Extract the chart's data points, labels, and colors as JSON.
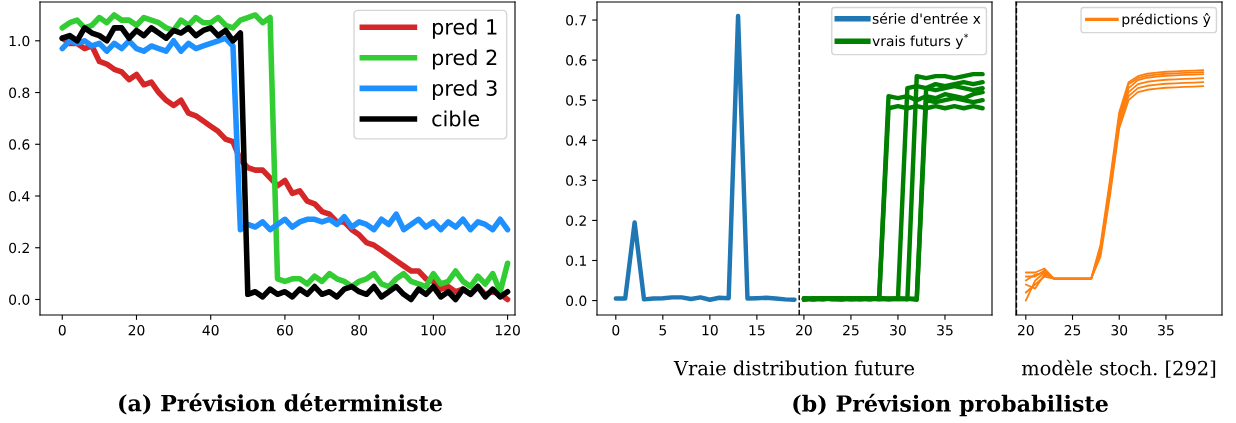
{
  "chart_data": [
    {
      "type": "line",
      "xlim": [
        -6,
        122
      ],
      "ylim": [
        -0.06,
        1.15
      ],
      "xticks": [
        0,
        20,
        40,
        60,
        80,
        100,
        120
      ],
      "yticks": [
        {
          "value": 0,
          "label": "0.0"
        },
        {
          "value": 0.2,
          "label": "0.2"
        },
        {
          "value": 0.4,
          "label": "0.4"
        },
        {
          "value": 0.6,
          "label": "0.6"
        },
        {
          "value": 0.8,
          "label": "0.8"
        },
        {
          "value": 1.0,
          "label": "1.0"
        }
      ],
      "grid": false,
      "legend": "top right",
      "marker": "none",
      "line_style": "solid",
      "x": [
        0,
        2,
        4,
        6,
        8,
        10,
        12,
        14,
        16,
        18,
        20,
        22,
        24,
        26,
        28,
        30,
        32,
        34,
        36,
        38,
        40,
        42,
        44,
        46,
        48,
        50,
        52,
        54,
        56,
        58,
        60,
        62,
        64,
        66,
        68,
        70,
        72,
        74,
        76,
        78,
        80,
        82,
        84,
        86,
        88,
        90,
        92,
        94,
        96,
        98,
        100,
        102,
        104,
        106,
        108,
        110,
        112,
        114,
        116,
        118,
        120
      ],
      "series": [
        {
          "name": "pred 1",
          "color": "#d62728",
          "values": [
            1.01,
            0.99,
            0.99,
            0.97,
            0.98,
            0.92,
            0.91,
            0.89,
            0.88,
            0.85,
            0.87,
            0.83,
            0.84,
            0.8,
            0.77,
            0.75,
            0.77,
            0.72,
            0.71,
            0.69,
            0.67,
            0.65,
            0.62,
            0.61,
            0.54,
            0.51,
            0.5,
            0.5,
            0.47,
            0.44,
            0.46,
            0.41,
            0.42,
            0.38,
            0.37,
            0.34,
            0.33,
            0.3,
            0.3,
            0.27,
            0.25,
            0.22,
            0.21,
            0.19,
            0.17,
            0.15,
            0.13,
            0.11,
            0.11,
            0.08,
            0.07,
            0.04,
            0.05,
            0.03,
            0.04,
            0.02,
            0.05,
            0.02,
            0.03,
            0.02,
            0.0
          ]
        },
        {
          "name": "pred 2",
          "color": "#32cd32",
          "values": [
            1.05,
            1.07,
            1.08,
            1.05,
            1.06,
            1.09,
            1.07,
            1.1,
            1.08,
            1.08,
            1.06,
            1.09,
            1.08,
            1.07,
            1.05,
            1.04,
            1.08,
            1.06,
            1.09,
            1.07,
            1.07,
            1.09,
            1.06,
            1.05,
            1.08,
            1.09,
            1.1,
            1.07,
            1.09,
            0.08,
            0.07,
            0.08,
            0.08,
            0.06,
            0.09,
            0.07,
            0.1,
            0.08,
            0.07,
            0.05,
            0.07,
            0.08,
            0.1,
            0.06,
            0.05,
            0.08,
            0.1,
            0.07,
            0.06,
            0.05,
            0.1,
            0.06,
            0.07,
            0.11,
            0.07,
            0.05,
            0.09,
            0.06,
            0.1,
            0.03,
            0.14
          ]
        },
        {
          "name": "pred 3",
          "color": "#1e90ff",
          "values": [
            0.97,
            1.0,
            0.99,
            1.0,
            0.98,
            0.99,
            0.96,
            0.99,
            0.97,
            1.0,
            0.97,
            0.96,
            0.98,
            0.97,
            0.96,
            1.0,
            0.96,
            0.99,
            0.97,
            0.98,
            0.99,
            1.0,
            1.01,
            0.98,
            0.27,
            0.29,
            0.28,
            0.3,
            0.27,
            0.29,
            0.31,
            0.28,
            0.3,
            0.31,
            0.31,
            0.3,
            0.31,
            0.29,
            0.32,
            0.28,
            0.3,
            0.29,
            0.27,
            0.31,
            0.29,
            0.33,
            0.27,
            0.29,
            0.31,
            0.28,
            0.3,
            0.27,
            0.3,
            0.28,
            0.31,
            0.27,
            0.3,
            0.29,
            0.27,
            0.31,
            0.27
          ]
        },
        {
          "name": "cible",
          "color": "#000000",
          "values": [
            1.01,
            1.02,
            1.0,
            1.05,
            1.03,
            1.02,
            1.0,
            1.05,
            1.05,
            1.01,
            1.04,
            1.02,
            1.05,
            1.03,
            1.01,
            1.04,
            1.03,
            1.05,
            1.02,
            1.04,
            1.05,
            1.02,
            1.04,
            1.0,
            1.03,
            0.02,
            0.03,
            0.01,
            0.04,
            0.02,
            0.03,
            0.01,
            0.04,
            0.02,
            0.05,
            0.02,
            0.03,
            0.01,
            0.04,
            0.05,
            0.03,
            0.02,
            0.05,
            0.01,
            0.03,
            0.05,
            0.02,
            0.0,
            0.04,
            0.02,
            0.05,
            0.01,
            0.03,
            0.0,
            0.04,
            0.02,
            0.05,
            0.01,
            0.04,
            0.01,
            0.03
          ]
        }
      ],
      "annotations": [
        "(a) Prévision déterministe"
      ]
    },
    {
      "type": "line",
      "xlim": [
        -2,
        40
      ],
      "ylim": [
        -0.036,
        0.745
      ],
      "xticks": [
        0,
        5,
        10,
        15,
        20,
        25,
        30,
        35
      ],
      "yticks": [
        {
          "value": 0,
          "label": "0.0"
        },
        {
          "value": 0.1,
          "label": "0.1"
        },
        {
          "value": 0.2,
          "label": "0.2"
        },
        {
          "value": 0.3,
          "label": "0.3"
        },
        {
          "value": 0.4,
          "label": "0.4"
        },
        {
          "value": 0.5,
          "label": "0.5"
        },
        {
          "value": 0.6,
          "label": "0.6"
        },
        {
          "value": 0.7,
          "label": "0.7"
        }
      ],
      "xlabel": "Vraie distribution future",
      "grid": false,
      "legend": "top right",
      "marker": "none",
      "line_style": "solid",
      "ref_lines": [
        {
          "axis": "x",
          "value": 19.5,
          "color": "#000000",
          "line_style": "dashed"
        }
      ],
      "series": [
        {
          "name": "série d'entrée x",
          "color": "#1f77b4",
          "x": [
            0,
            1,
            2,
            3,
            4,
            5,
            6,
            7,
            8,
            9,
            10,
            11,
            12,
            13,
            14,
            15,
            16,
            17,
            18,
            19
          ],
          "values": [
            0.005,
            0.005,
            0.195,
            0.003,
            0.005,
            0.006,
            0.008,
            0.008,
            0.004,
            0.008,
            0.002,
            0.007,
            0.006,
            0.71,
            0.005,
            0.006,
            0.007,
            0.005,
            0.003,
            0.002
          ]
        },
        {
          "name": "vrais futurs y$^{*}$",
          "color": "#008000",
          "x": [
            20,
            21,
            22,
            23,
            24,
            25,
            26,
            27,
            28,
            29,
            30,
            31,
            32,
            33,
            34,
            35,
            36,
            37,
            38,
            39
          ],
          "values": [
            0.005,
            0.004,
            0.006,
            0.005,
            0.004,
            0.006,
            0.005,
            0.004,
            0.005,
            0.51,
            0.505,
            0.51,
            0.5,
            0.51,
            0.505,
            0.515,
            0.51,
            0.505,
            0.515,
            0.52
          ]
        },
        {
          "color": "#008000",
          "x": [
            20,
            21,
            22,
            23,
            24,
            25,
            26,
            27,
            28,
            29,
            30,
            31,
            32,
            33,
            34,
            35,
            36,
            37,
            38,
            39
          ],
          "values": [
            0.002,
            0.006,
            0.003,
            0.005,
            0.006,
            0.003,
            0.004,
            0.006,
            0.004,
            0.48,
            0.485,
            0.48,
            0.485,
            0.48,
            0.485,
            0.48,
            0.485,
            0.48,
            0.485,
            0.48
          ]
        },
        {
          "color": "#008000",
          "x": [
            20,
            21,
            22,
            23,
            24,
            25,
            26,
            27,
            28,
            29,
            30,
            31,
            32,
            33,
            34,
            35,
            36,
            37,
            38,
            39
          ],
          "values": [
            0.006,
            0.003,
            0.005,
            0.004,
            0.003,
            0.005,
            0.006,
            0.003,
            0.005,
            0.004,
            0.005,
            0.53,
            0.535,
            0.53,
            0.54,
            0.535,
            0.54,
            0.545,
            0.54,
            0.545
          ]
        },
        {
          "color": "#008000",
          "x": [
            20,
            21,
            22,
            23,
            24,
            25,
            26,
            27,
            28,
            29,
            30,
            31,
            32,
            33,
            34,
            35,
            36,
            37,
            38,
            39
          ],
          "values": [
            0.004,
            0.005,
            0.004,
            0.006,
            0.005,
            0.004,
            0.005,
            0.005,
            0.006,
            0.005,
            0.004,
            0.003,
            0.56,
            0.555,
            0.56,
            0.56,
            0.555,
            0.56,
            0.565,
            0.565
          ]
        },
        {
          "color": "#008000",
          "x": [
            20,
            21,
            22,
            23,
            24,
            25,
            26,
            27,
            28,
            29,
            30,
            31,
            32,
            33,
            34,
            35,
            36,
            37,
            38,
            39
          ],
          "values": [
            0.003,
            0.004,
            0.006,
            0.003,
            0.004,
            0.006,
            0.003,
            0.004,
            0.006,
            0.003,
            0.004,
            0.005,
            0.002,
            0.5,
            0.495,
            0.5,
            0.505,
            0.5,
            0.495,
            0.5
          ]
        },
        {
          "color": "#008000",
          "x": [
            20,
            21,
            22,
            23,
            24,
            25,
            26,
            27,
            28,
            29,
            30,
            31,
            32,
            33,
            34,
            35,
            36,
            37,
            38,
            39
          ],
          "values": [
            0.005,
            0.003,
            0.004,
            0.005,
            0.003,
            0.004,
            0.004,
            0.005,
            0.003,
            0.004,
            0.006,
            0.004,
            0.005,
            0.53,
            0.525,
            0.53,
            0.535,
            0.53,
            0.525,
            0.53
          ]
        }
      ],
      "annotations": [
        "(b) Prévision probabiliste"
      ]
    },
    {
      "type": "line",
      "xlim": [
        18.95,
        41
      ],
      "ylim": [
        -0.036,
        0.745
      ],
      "xticks": [
        20,
        25,
        30,
        35
      ],
      "tick_labels": "x",
      "xlabel": "modèle stoch. [292]",
      "grid": false,
      "legend": "top right",
      "marker": "none",
      "line_style": "solid",
      "ref_lines": [
        {
          "axis": "x",
          "value": 19,
          "color": "#000000",
          "line_style": "dashed"
        }
      ],
      "series": [
        {
          "name": "prédictions ŷ",
          "color": "#ff7f0e",
          "x": [
            20,
            21,
            22,
            23,
            24,
            25,
            26,
            27,
            28,
            29,
            30,
            31,
            32,
            33,
            34,
            35,
            36,
            37,
            38,
            39
          ],
          "values": [
            0.07,
            0.07,
            0.08,
            0.055,
            0.055,
            0.055,
            0.055,
            0.055,
            0.14,
            0.3,
            0.47,
            0.545,
            0.56,
            0.566,
            0.569,
            0.571,
            0.572,
            0.573,
            0.574,
            0.575
          ]
        },
        {
          "color": "#ff7f0e",
          "x": [
            20,
            21,
            22,
            23,
            24,
            25,
            26,
            27,
            28,
            29,
            30,
            31,
            32,
            33,
            34,
            35,
            36,
            37,
            38,
            39
          ],
          "values": [
            0.0,
            0.05,
            0.07,
            0.055,
            0.055,
            0.055,
            0.055,
            0.055,
            0.13,
            0.29,
            0.46,
            0.54,
            0.555,
            0.561,
            0.564,
            0.566,
            0.567,
            0.568,
            0.569,
            0.57
          ]
        },
        {
          "color": "#ff7f0e",
          "x": [
            20,
            21,
            22,
            23,
            24,
            25,
            26,
            27,
            28,
            29,
            30,
            31,
            32,
            33,
            34,
            35,
            36,
            37,
            38,
            39
          ],
          "values": [
            0.04,
            0.03,
            0.065,
            0.055,
            0.055,
            0.055,
            0.055,
            0.055,
            0.12,
            0.28,
            0.45,
            0.53,
            0.55,
            0.556,
            0.559,
            0.561,
            0.562,
            0.563,
            0.564,
            0.565
          ]
        },
        {
          "color": "#ff7f0e",
          "x": [
            20,
            21,
            22,
            23,
            24,
            25,
            26,
            27,
            28,
            29,
            30,
            31,
            32,
            33,
            34,
            35,
            36,
            37,
            38,
            39
          ],
          "values": [
            0.06,
            0.06,
            0.075,
            0.055,
            0.055,
            0.055,
            0.055,
            0.055,
            0.13,
            0.28,
            0.45,
            0.52,
            0.54,
            0.546,
            0.549,
            0.551,
            0.552,
            0.553,
            0.554,
            0.555
          ]
        },
        {
          "color": "#ff7f0e",
          "x": [
            20,
            21,
            22,
            23,
            24,
            25,
            26,
            27,
            28,
            29,
            30,
            31,
            32,
            33,
            34,
            35,
            36,
            37,
            38,
            39
          ],
          "values": [
            0.05,
            0.065,
            0.07,
            0.055,
            0.055,
            0.055,
            0.055,
            0.055,
            0.12,
            0.27,
            0.44,
            0.51,
            0.53,
            0.536,
            0.539,
            0.541,
            0.542,
            0.543,
            0.544,
            0.545
          ]
        },
        {
          "color": "#ff7f0e",
          "x": [
            20,
            21,
            22,
            23,
            24,
            25,
            26,
            27,
            28,
            29,
            30,
            31,
            32,
            33,
            34,
            35,
            36,
            37,
            38,
            39
          ],
          "values": [
            0.02,
            0.04,
            0.06,
            0.055,
            0.055,
            0.055,
            0.055,
            0.055,
            0.11,
            0.26,
            0.43,
            0.5,
            0.52,
            0.526,
            0.529,
            0.531,
            0.532,
            0.533,
            0.534,
            0.535
          ]
        }
      ]
    }
  ]
}
